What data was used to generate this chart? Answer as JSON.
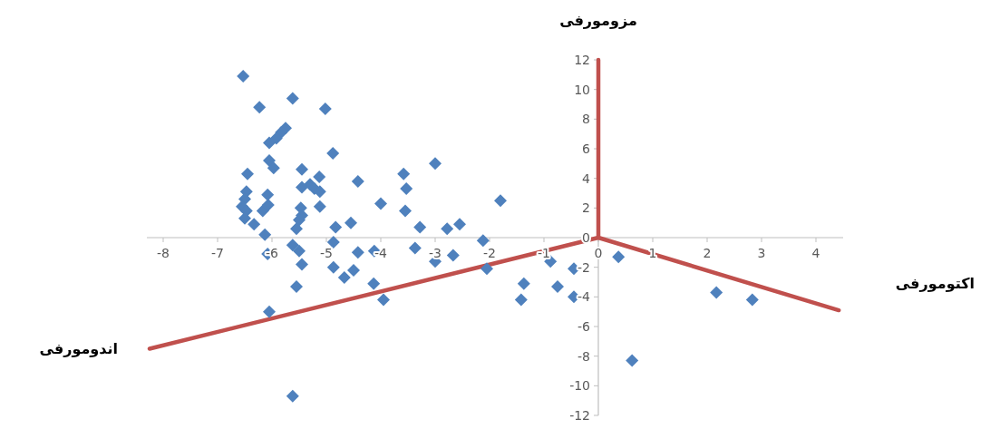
{
  "chart_data": {
    "type": "scatter",
    "marker": "diamond",
    "xlim": [
      -8.3,
      4.5
    ],
    "ylim": [
      -12,
      12
    ],
    "xticks": [
      -8,
      -7,
      -6,
      -5,
      -4,
      -3,
      -2,
      -1,
      0,
      1,
      2,
      3,
      4
    ],
    "yticks": [
      -12,
      -10,
      -8,
      -6,
      -4,
      -2,
      0,
      2,
      4,
      6,
      8,
      10,
      12
    ],
    "annotations": [
      "مزومورفی",
      "اکتومورفی",
      "اندومورفی"
    ],
    "series": [
      {
        "type": "scatter",
        "color": "#4f81bd",
        "x": [
          -6.53,
          -6.23,
          -5.62,
          -5.02,
          -5.75,
          -5.83,
          -5.92,
          -6.05,
          -4.88,
          -6.05,
          -5.97,
          -6.45,
          -5.45,
          -5.13,
          -5.3,
          -5.22,
          -5.12,
          -5.45,
          -4.42,
          -3.58,
          -3.53,
          -3.55,
          -4.0,
          -6.08,
          -6.47,
          -6.5,
          -6.55,
          -6.47,
          -6.5,
          -6.17,
          -6.07,
          -5.47,
          -5.45,
          -5.5,
          -5.12,
          -6.33,
          -6.13,
          -5.55,
          -4.83,
          -4.55,
          -5.62,
          -5.5,
          -4.87,
          -6.08,
          -5.45,
          -4.42,
          -4.12,
          -4.87,
          -4.5,
          -3.0,
          -3.28,
          -2.78,
          -2.55,
          -1.8,
          -2.12,
          -3.37,
          -3.0,
          -2.67,
          -2.05,
          -0.88,
          -0.45,
          -4.13,
          -3.95,
          -1.37,
          -1.42,
          -0.75,
          -0.45,
          0.37,
          0.62,
          2.17,
          2.83,
          -6.05,
          -5.55,
          -5.62,
          -4.67
        ],
        "values": [
          10.9,
          8.8,
          9.4,
          8.7,
          7.4,
          7.1,
          6.7,
          6.4,
          5.7,
          5.2,
          4.7,
          4.3,
          4.6,
          4.1,
          3.6,
          3.3,
          3.1,
          3.4,
          3.8,
          4.3,
          3.3,
          1.8,
          2.3,
          2.9,
          3.1,
          2.6,
          2.1,
          1.8,
          1.3,
          1.8,
          2.2,
          2.0,
          1.5,
          1.2,
          2.1,
          0.9,
          0.2,
          0.6,
          0.7,
          1.0,
          -0.5,
          -0.9,
          -0.3,
          -1.1,
          -1.8,
          -1.0,
          -0.9,
          -2.0,
          -2.2,
          5.0,
          0.7,
          0.6,
          0.9,
          2.5,
          -0.2,
          -0.7,
          -1.6,
          -1.2,
          -2.1,
          -1.6,
          -2.1,
          -3.1,
          -4.2,
          -3.1,
          -4.2,
          -3.3,
          -4.0,
          -1.3,
          -8.3,
          -3.7,
          -4.2,
          -5.0,
          -3.3,
          -10.7,
          -2.7
        ]
      },
      {
        "type": "line",
        "color": "#c0504d",
        "marker": "none",
        "line_style": "solid",
        "x": [
          0,
          0
        ],
        "values": [
          0,
          12
        ]
      },
      {
        "type": "line",
        "color": "#c0504d",
        "marker": "none",
        "line_style": "solid",
        "x": [
          0,
          -8.25
        ],
        "values": [
          0,
          -7.5
        ]
      },
      {
        "type": "line",
        "color": "#c0504d",
        "marker": "none",
        "line_style": "solid",
        "x": [
          0,
          4.42
        ],
        "values": [
          0,
          -4.9
        ]
      }
    ]
  }
}
